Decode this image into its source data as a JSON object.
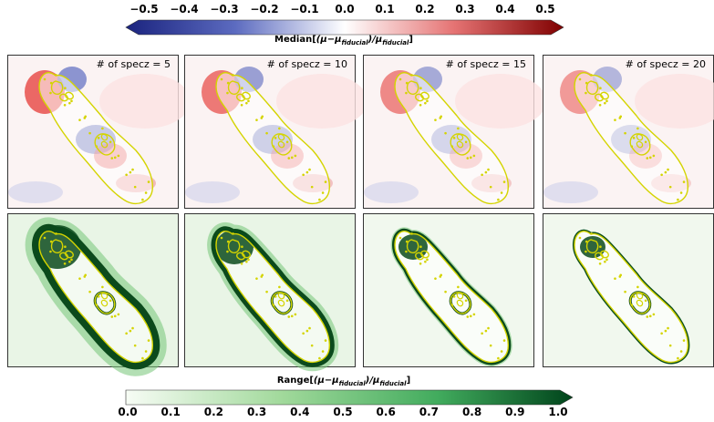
{
  "colorbar_top": {
    "ticks": [
      "−0.5",
      "−0.4",
      "−0.3",
      "−0.2",
      "−0.1",
      "0.0",
      "0.1",
      "0.2",
      "0.3",
      "0.4",
      "0.5"
    ],
    "label_prefix": "Median[",
    "label_formula": "(μ−μ",
    "label_sub1": "fiducial",
    "label_mid": ")/μ",
    "label_sub2": "fiducial",
    "label_suffix": "]",
    "colors": [
      "#1a237e",
      "#3f51b5",
      "#ffffff",
      "#e53935",
      "#7f0000"
    ]
  },
  "colorbar_bottom": {
    "ticks": [
      "0.0",
      "0.1",
      "0.2",
      "0.3",
      "0.4",
      "0.5",
      "0.6",
      "0.7",
      "0.8",
      "0.9",
      "1.0"
    ],
    "label_prefix": "Range[",
    "label_formula": "(μ−μ",
    "label_sub1": "fiducial",
    "label_mid": ")/μ",
    "label_sub2": "fiducial",
    "label_suffix": "]",
    "colors": [
      "#f7fcf5",
      "#a1d99b",
      "#41ab5d",
      "#00441b"
    ]
  },
  "panels": [
    {
      "title": "# of specz = 5"
    },
    {
      "title": "# of specz = 10"
    },
    {
      "title": "# of specz = 15"
    },
    {
      "title": "# of specz = 20"
    }
  ],
  "colors": {
    "critical_curve": "#d4d400",
    "range_dark": "#0b4a1c"
  }
}
